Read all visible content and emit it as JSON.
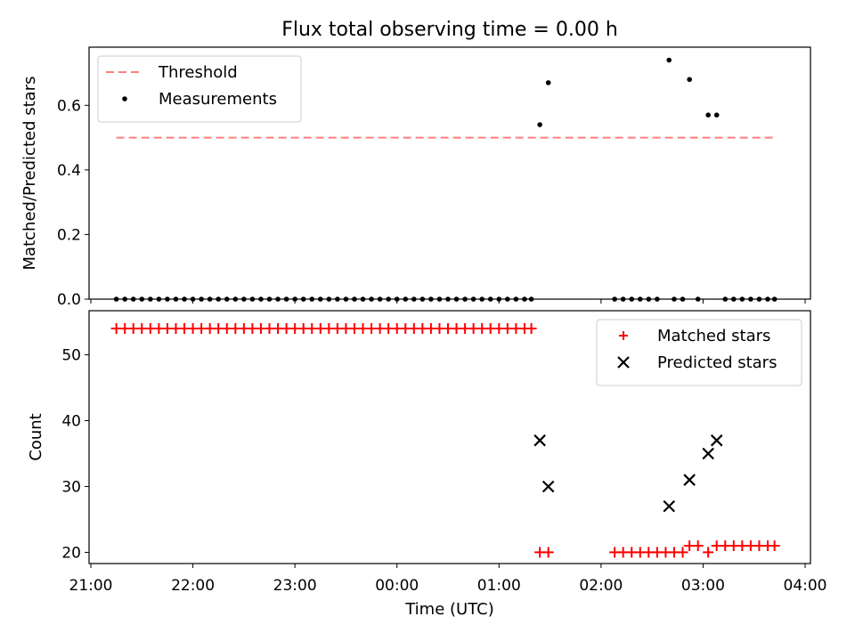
{
  "figure": {
    "title": "Flux total observing time = 0.00 h",
    "xlabel": "Time (UTC)",
    "xticks": [
      "21:00",
      "22:00",
      "23:00",
      "00:00",
      "01:00",
      "02:00",
      "03:00",
      "04:00"
    ]
  },
  "chart_data": [
    {
      "type": "scatter",
      "panel": "top",
      "ylabel": "Matched/Predicted stars",
      "xlim": [
        "21:00",
        "04:00"
      ],
      "ylim": [
        0,
        0.78
      ],
      "yticks": [
        "0.0",
        "0.2",
        "0.4",
        "0.6"
      ],
      "legend": {
        "position": "top-left"
      },
      "threshold": {
        "name": "Threshold",
        "value": 0.5,
        "x_start": "21:15",
        "x_end": "03:42",
        "color": "#ff7f7f",
        "style": "dashed"
      },
      "series": [
        {
          "name": "Measurements",
          "marker": "dot",
          "color": "#000000",
          "points": [
            [
              "21:15",
              0
            ],
            [
              "21:20",
              0
            ],
            [
              "21:25",
              0
            ],
            [
              "21:30",
              0
            ],
            [
              "21:35",
              0
            ],
            [
              "21:40",
              0
            ],
            [
              "21:45",
              0
            ],
            [
              "21:50",
              0
            ],
            [
              "21:55",
              0
            ],
            [
              "22:00",
              0
            ],
            [
              "22:05",
              0
            ],
            [
              "22:10",
              0
            ],
            [
              "22:15",
              0
            ],
            [
              "22:20",
              0
            ],
            [
              "22:25",
              0
            ],
            [
              "22:30",
              0
            ],
            [
              "22:35",
              0
            ],
            [
              "22:40",
              0
            ],
            [
              "22:45",
              0
            ],
            [
              "22:50",
              0
            ],
            [
              "22:55",
              0
            ],
            [
              "23:00",
              0
            ],
            [
              "23:05",
              0
            ],
            [
              "23:10",
              0
            ],
            [
              "23:15",
              0
            ],
            [
              "23:20",
              0
            ],
            [
              "23:25",
              0
            ],
            [
              "23:30",
              0
            ],
            [
              "23:35",
              0
            ],
            [
              "23:40",
              0
            ],
            [
              "23:45",
              0
            ],
            [
              "23:50",
              0
            ],
            [
              "23:55",
              0
            ],
            [
              "00:00",
              0
            ],
            [
              "00:05",
              0
            ],
            [
              "00:10",
              0
            ],
            [
              "00:15",
              0
            ],
            [
              "00:20",
              0
            ],
            [
              "00:25",
              0
            ],
            [
              "00:30",
              0
            ],
            [
              "00:35",
              0
            ],
            [
              "00:40",
              0
            ],
            [
              "00:45",
              0
            ],
            [
              "00:50",
              0
            ],
            [
              "00:55",
              0
            ],
            [
              "01:00",
              0
            ],
            [
              "01:05",
              0
            ],
            [
              "01:10",
              0
            ],
            [
              "01:15",
              0
            ],
            [
              "01:19",
              0
            ],
            [
              "01:24",
              0.54
            ],
            [
              "01:29",
              0.67
            ],
            [
              "02:08",
              0
            ],
            [
              "02:13",
              0
            ],
            [
              "02:18",
              0
            ],
            [
              "02:23",
              0
            ],
            [
              "02:28",
              0
            ],
            [
              "02:33",
              0
            ],
            [
              "02:40",
              0.74
            ],
            [
              "02:43",
              0
            ],
            [
              "02:48",
              0
            ],
            [
              "02:52",
              0.68
            ],
            [
              "02:57",
              0
            ],
            [
              "03:03",
              0.57
            ],
            [
              "03:08",
              0.57
            ],
            [
              "03:13",
              0
            ],
            [
              "03:18",
              0
            ],
            [
              "03:23",
              0
            ],
            [
              "03:28",
              0
            ],
            [
              "03:33",
              0
            ],
            [
              "03:38",
              0
            ],
            [
              "03:42",
              0
            ]
          ]
        }
      ]
    },
    {
      "type": "scatter",
      "panel": "bottom",
      "ylabel": "Count",
      "xlim": [
        "21:00",
        "04:00"
      ],
      "ylim": [
        18.3,
        56.7
      ],
      "yticks": [
        "20",
        "30",
        "40",
        "50"
      ],
      "legend": {
        "position": "top-right"
      },
      "series": [
        {
          "name": "Matched stars",
          "marker": "plus",
          "color": "#ff0000",
          "points": [
            [
              "21:15",
              54
            ],
            [
              "21:20",
              54
            ],
            [
              "21:25",
              54
            ],
            [
              "21:30",
              54
            ],
            [
              "21:35",
              54
            ],
            [
              "21:40",
              54
            ],
            [
              "21:45",
              54
            ],
            [
              "21:50",
              54
            ],
            [
              "21:55",
              54
            ],
            [
              "22:00",
              54
            ],
            [
              "22:05",
              54
            ],
            [
              "22:10",
              54
            ],
            [
              "22:15",
              54
            ],
            [
              "22:20",
              54
            ],
            [
              "22:25",
              54
            ],
            [
              "22:30",
              54
            ],
            [
              "22:35",
              54
            ],
            [
              "22:40",
              54
            ],
            [
              "22:45",
              54
            ],
            [
              "22:50",
              54
            ],
            [
              "22:55",
              54
            ],
            [
              "23:00",
              54
            ],
            [
              "23:05",
              54
            ],
            [
              "23:10",
              54
            ],
            [
              "23:15",
              54
            ],
            [
              "23:20",
              54
            ],
            [
              "23:25",
              54
            ],
            [
              "23:30",
              54
            ],
            [
              "23:35",
              54
            ],
            [
              "23:40",
              54
            ],
            [
              "23:45",
              54
            ],
            [
              "23:50",
              54
            ],
            [
              "23:55",
              54
            ],
            [
              "00:00",
              54
            ],
            [
              "00:05",
              54
            ],
            [
              "00:10",
              54
            ],
            [
              "00:15",
              54
            ],
            [
              "00:20",
              54
            ],
            [
              "00:25",
              54
            ],
            [
              "00:30",
              54
            ],
            [
              "00:35",
              54
            ],
            [
              "00:40",
              54
            ],
            [
              "00:45",
              54
            ],
            [
              "00:50",
              54
            ],
            [
              "00:55",
              54
            ],
            [
              "01:00",
              54
            ],
            [
              "01:05",
              54
            ],
            [
              "01:10",
              54
            ],
            [
              "01:15",
              54
            ],
            [
              "01:19",
              54
            ],
            [
              "01:24",
              20
            ],
            [
              "01:29",
              20
            ],
            [
              "02:08",
              20
            ],
            [
              "02:13",
              20
            ],
            [
              "02:18",
              20
            ],
            [
              "02:23",
              20
            ],
            [
              "02:28",
              20
            ],
            [
              "02:33",
              20
            ],
            [
              "02:38",
              20
            ],
            [
              "02:43",
              20
            ],
            [
              "02:48",
              20
            ],
            [
              "02:52",
              21
            ],
            [
              "02:57",
              21
            ],
            [
              "03:03",
              20
            ],
            [
              "03:08",
              21
            ],
            [
              "03:13",
              21
            ],
            [
              "03:18",
              21
            ],
            [
              "03:23",
              21
            ],
            [
              "03:28",
              21
            ],
            [
              "03:33",
              21
            ],
            [
              "03:38",
              21
            ],
            [
              "03:42",
              21
            ]
          ]
        },
        {
          "name": "Predicted stars",
          "marker": "x",
          "color": "#000000",
          "points": [
            [
              "01:24",
              37
            ],
            [
              "01:29",
              30
            ],
            [
              "02:40",
              27
            ],
            [
              "02:52",
              31
            ],
            [
              "03:03",
              35
            ],
            [
              "03:08",
              37
            ]
          ]
        }
      ]
    }
  ]
}
